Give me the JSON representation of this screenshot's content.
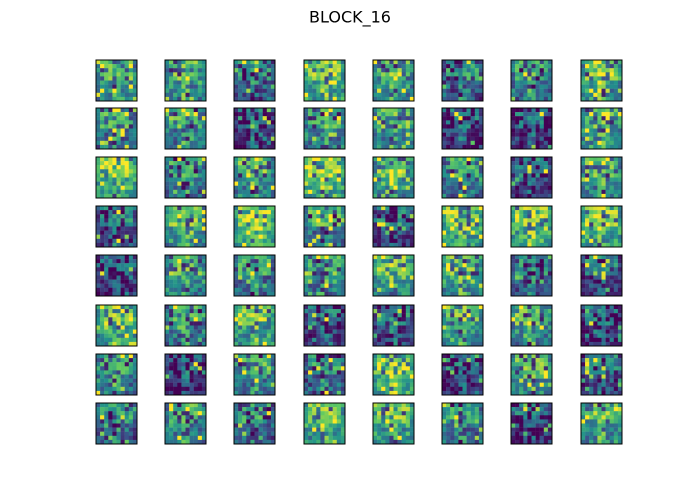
{
  "title": "BLOCK_16"
}
